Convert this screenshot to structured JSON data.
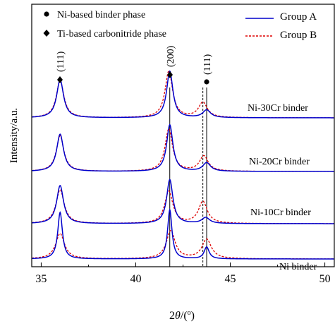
{
  "chart_data": {
    "type": "line",
    "xlabel_prefix": "2",
    "xlabel_theta": "θ",
    "xlabel_unit": "/(",
    "xlabel_degree": "o",
    "xlabel_close": ")",
    "ylabel": "Intensity/a.u.",
    "xlim": [
      34.5,
      50.5
    ],
    "xticks": [
      35,
      40,
      45,
      50
    ],
    "xtick_labels": [
      "35",
      "40",
      "45",
      "50"
    ],
    "legend_markers": [
      {
        "symbol": "circle",
        "label": "Ni-based binder phase"
      },
      {
        "symbol": "diamond",
        "label": "Ti-based carbonitride phase"
      }
    ],
    "peaks": [
      {
        "symbol": "diamond",
        "label": "(111)",
        "x": 36.0
      },
      {
        "symbol": "diamond",
        "label": "(200)",
        "x": 41.8
      },
      {
        "symbol": "circle",
        "label": "(111)",
        "x": 43.75
      }
    ],
    "reference_lines": [
      {
        "x": 41.8,
        "style": "solid"
      },
      {
        "x": 43.55,
        "style": "dashed"
      },
      {
        "x": 43.75,
        "style": "solid"
      }
    ],
    "series": [
      {
        "name": "Group A",
        "color": "#0000cc",
        "style": "solid"
      },
      {
        "name": "Group B",
        "color": "#dd0000",
        "style": "dashed"
      }
    ],
    "samples": [
      {
        "label": "Ni-30Cr binder",
        "offset": 3,
        "A": [
          {
            "c": 36.0,
            "h": 0.45,
            "w": 0.22
          },
          {
            "c": 41.8,
            "h": 0.55,
            "w": 0.2
          },
          {
            "c": 43.75,
            "h": 0.09,
            "w": 0.25
          }
        ],
        "B": [
          {
            "c": 36.0,
            "h": 0.44,
            "w": 0.24
          },
          {
            "c": 41.75,
            "h": 0.55,
            "w": 0.24
          },
          {
            "c": 43.55,
            "h": 0.18,
            "w": 0.28
          }
        ]
      },
      {
        "label": "Ni-20Cr binder",
        "offset": 2,
        "A": [
          {
            "c": 36.0,
            "h": 0.44,
            "w": 0.22
          },
          {
            "c": 41.8,
            "h": 0.55,
            "w": 0.2
          },
          {
            "c": 43.75,
            "h": 0.1,
            "w": 0.25
          }
        ],
        "B": [
          {
            "c": 36.0,
            "h": 0.42,
            "w": 0.24
          },
          {
            "c": 41.75,
            "h": 0.5,
            "w": 0.24
          },
          {
            "c": 43.6,
            "h": 0.18,
            "w": 0.28
          }
        ]
      },
      {
        "label": "Ni-10Cr binder",
        "offset": 1,
        "A": [
          {
            "c": 36.0,
            "h": 0.45,
            "w": 0.22
          },
          {
            "c": 41.8,
            "h": 0.52,
            "w": 0.2
          },
          {
            "c": 43.7,
            "h": 0.07,
            "w": 0.25
          }
        ],
        "B": [
          {
            "c": 36.0,
            "h": 0.4,
            "w": 0.26
          },
          {
            "c": 41.75,
            "h": 0.38,
            "w": 0.26
          },
          {
            "c": 43.55,
            "h": 0.26,
            "w": 0.28
          }
        ]
      },
      {
        "label": "Ni binder",
        "offset": 0,
        "A": [
          {
            "c": 36.0,
            "h": 0.55,
            "w": 0.15
          },
          {
            "c": 41.8,
            "h": 0.58,
            "w": 0.14
          },
          {
            "c": 43.75,
            "h": 0.14,
            "w": 0.16
          }
        ],
        "B": [
          {
            "c": 36.0,
            "h": 0.3,
            "w": 0.28
          },
          {
            "c": 41.85,
            "h": 0.33,
            "w": 0.28
          },
          {
            "c": 43.75,
            "h": 0.23,
            "w": 0.3
          }
        ]
      }
    ]
  }
}
